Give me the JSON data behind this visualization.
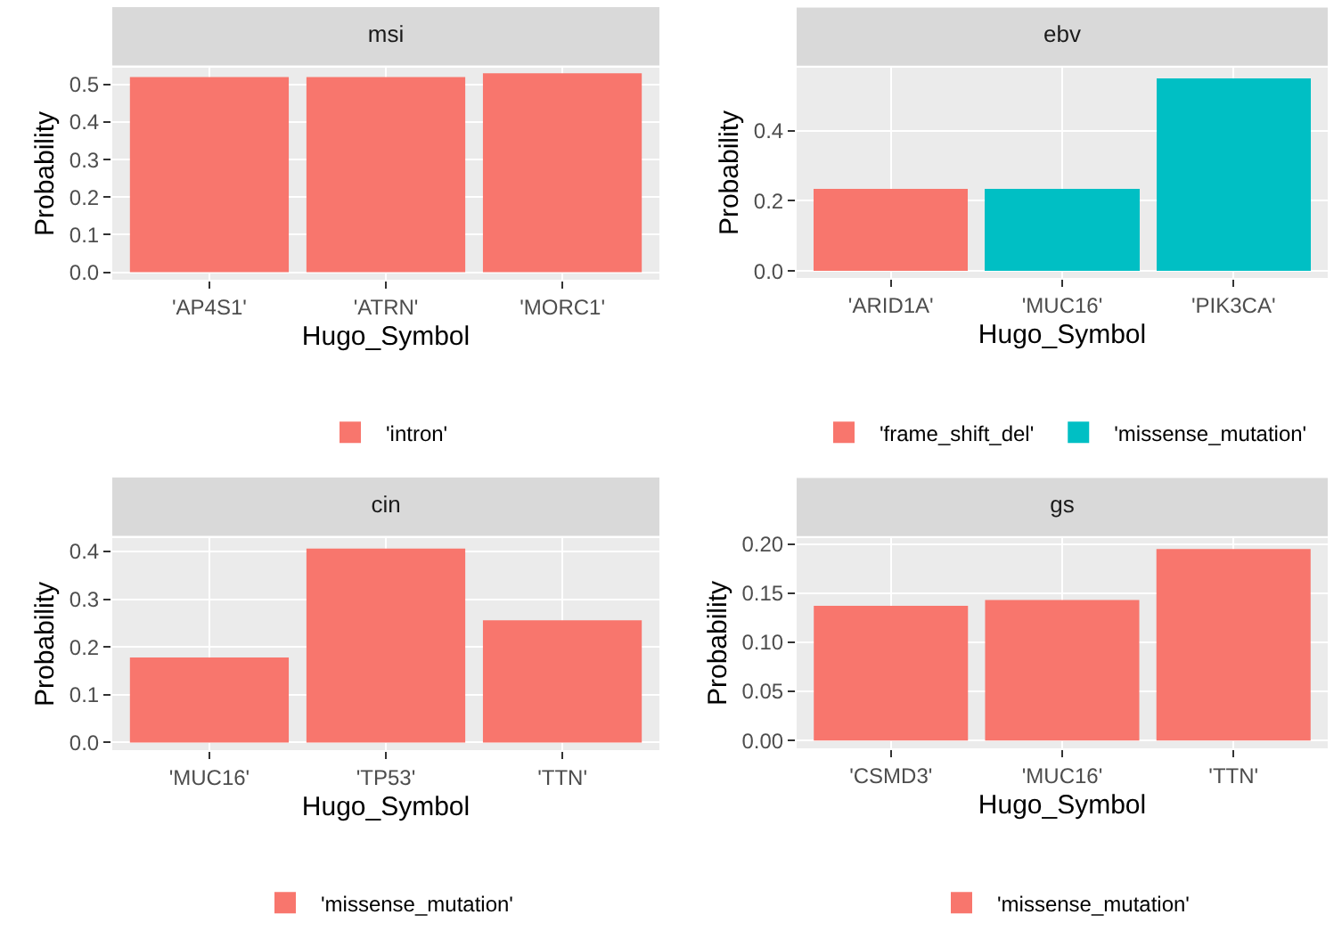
{
  "chart_data": [
    {
      "type": "bar",
      "title": "msi",
      "xlabel": "Hugo_Symbol",
      "ylabel": "Probability",
      "categories": [
        "'AP4S1'",
        "'ATRN'",
        "'MORC1'"
      ],
      "stacked": true,
      "series": [
        {
          "name": "'intron'",
          "color": "#f8766d",
          "values": [
            0.52,
            0.52,
            0.53
          ]
        }
      ],
      "ylim": [
        -0.02,
        0.545
      ],
      "yticks": [
        {
          "value": 0,
          "label": "0.0"
        },
        0.1,
        0.2,
        0.3,
        0.4,
        0.5
      ],
      "grid": true,
      "legend": "bottom"
    },
    {
      "type": "bar",
      "title": "ebv",
      "xlabel": "Hugo_Symbol",
      "ylabel": "Probability",
      "categories": [
        "'ARID1A'",
        "'MUC16'",
        "'PIK3CA'"
      ],
      "stacked": true,
      "series": [
        {
          "name": "'frame_shift_del'",
          "color": "#f8766d",
          "values": [
            0.235,
            null,
            null
          ]
        },
        {
          "name": "'missense_mutation'",
          "color": "#00bfc4",
          "values": [
            null,
            0.235,
            0.55
          ]
        }
      ],
      "ylim": [
        -0.02,
        0.58
      ],
      "yticks": [
        {
          "value": 0,
          "label": "0.0"
        },
        0.2,
        0.4
      ],
      "grid": true,
      "legend": "bottom"
    },
    {
      "type": "bar",
      "title": "cin",
      "xlabel": "Hugo_Symbol",
      "ylabel": "Probability",
      "categories": [
        "'MUC16'",
        "'TP53'",
        "'TTN'"
      ],
      "stacked": true,
      "series": [
        {
          "name": "'missense_mutation'",
          "color": "#f8766d",
          "values": [
            0.178,
            0.406,
            0.256
          ]
        }
      ],
      "ylim": [
        -0.016,
        0.428
      ],
      "yticks": [
        {
          "value": 0,
          "label": "0.0"
        },
        0.1,
        0.2,
        0.3,
        0.4
      ],
      "grid": true,
      "legend": "bottom"
    },
    {
      "type": "bar",
      "title": "gs",
      "xlabel": "Hugo_Symbol",
      "ylabel": "Probability",
      "categories": [
        "'CSMD3'",
        "'MUC16'",
        "'TTN'"
      ],
      "stacked": true,
      "series": [
        {
          "name": "'missense_mutation'",
          "color": "#f8766d",
          "values": [
            0.137,
            0.143,
            0.195
          ]
        }
      ],
      "ylim": [
        -0.008,
        0.206
      ],
      "yticks": [
        {
          "value": 0,
          "label": "0.00"
        },
        {
          "value": 0.05,
          "label": "0.05"
        },
        {
          "value": 0.1,
          "label": "0.10"
        },
        {
          "value": 0.15,
          "label": "0.15"
        },
        {
          "value": 0.2,
          "label": "0.20"
        }
      ],
      "grid": true,
      "legend": "bottom"
    }
  ]
}
